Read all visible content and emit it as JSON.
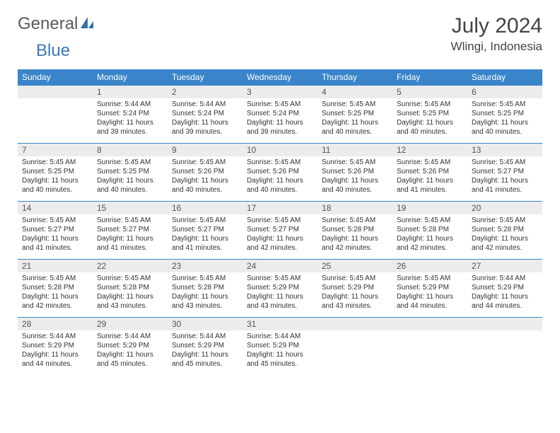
{
  "logo": {
    "part1": "General",
    "part2": "Blue"
  },
  "title": "July 2024",
  "location": "Wlingi, Indonesia",
  "weekdays": [
    "Sunday",
    "Monday",
    "Tuesday",
    "Wednesday",
    "Thursday",
    "Friday",
    "Saturday"
  ],
  "colors": {
    "header_bg": "#3a85c9",
    "header_fg": "#ffffff",
    "daynum_bg": "#ececec",
    "row_border": "#3a85c9",
    "logo_gray": "#5a5a5a",
    "logo_blue": "#3a7ab8"
  },
  "fonts": {
    "title_size": 30,
    "location_size": 17,
    "weekday_size": 12,
    "daynum_size": 12,
    "body_size": 10
  },
  "layout": {
    "first_day_column": 1,
    "n_days": 31,
    "rows": 5,
    "cols": 7
  },
  "days": [
    {
      "n": 1,
      "sunrise": "5:44 AM",
      "sunset": "5:24 PM",
      "daylight": "11 hours and 39 minutes."
    },
    {
      "n": 2,
      "sunrise": "5:44 AM",
      "sunset": "5:24 PM",
      "daylight": "11 hours and 39 minutes."
    },
    {
      "n": 3,
      "sunrise": "5:45 AM",
      "sunset": "5:24 PM",
      "daylight": "11 hours and 39 minutes."
    },
    {
      "n": 4,
      "sunrise": "5:45 AM",
      "sunset": "5:25 PM",
      "daylight": "11 hours and 40 minutes."
    },
    {
      "n": 5,
      "sunrise": "5:45 AM",
      "sunset": "5:25 PM",
      "daylight": "11 hours and 40 minutes."
    },
    {
      "n": 6,
      "sunrise": "5:45 AM",
      "sunset": "5:25 PM",
      "daylight": "11 hours and 40 minutes."
    },
    {
      "n": 7,
      "sunrise": "5:45 AM",
      "sunset": "5:25 PM",
      "daylight": "11 hours and 40 minutes."
    },
    {
      "n": 8,
      "sunrise": "5:45 AM",
      "sunset": "5:25 PM",
      "daylight": "11 hours and 40 minutes."
    },
    {
      "n": 9,
      "sunrise": "5:45 AM",
      "sunset": "5:26 PM",
      "daylight": "11 hours and 40 minutes."
    },
    {
      "n": 10,
      "sunrise": "5:45 AM",
      "sunset": "5:26 PM",
      "daylight": "11 hours and 40 minutes."
    },
    {
      "n": 11,
      "sunrise": "5:45 AM",
      "sunset": "5:26 PM",
      "daylight": "11 hours and 40 minutes."
    },
    {
      "n": 12,
      "sunrise": "5:45 AM",
      "sunset": "5:26 PM",
      "daylight": "11 hours and 41 minutes."
    },
    {
      "n": 13,
      "sunrise": "5:45 AM",
      "sunset": "5:27 PM",
      "daylight": "11 hours and 41 minutes."
    },
    {
      "n": 14,
      "sunrise": "5:45 AM",
      "sunset": "5:27 PM",
      "daylight": "11 hours and 41 minutes."
    },
    {
      "n": 15,
      "sunrise": "5:45 AM",
      "sunset": "5:27 PM",
      "daylight": "11 hours and 41 minutes."
    },
    {
      "n": 16,
      "sunrise": "5:45 AM",
      "sunset": "5:27 PM",
      "daylight": "11 hours and 41 minutes."
    },
    {
      "n": 17,
      "sunrise": "5:45 AM",
      "sunset": "5:27 PM",
      "daylight": "11 hours and 42 minutes."
    },
    {
      "n": 18,
      "sunrise": "5:45 AM",
      "sunset": "5:28 PM",
      "daylight": "11 hours and 42 minutes."
    },
    {
      "n": 19,
      "sunrise": "5:45 AM",
      "sunset": "5:28 PM",
      "daylight": "11 hours and 42 minutes."
    },
    {
      "n": 20,
      "sunrise": "5:45 AM",
      "sunset": "5:28 PM",
      "daylight": "11 hours and 42 minutes."
    },
    {
      "n": 21,
      "sunrise": "5:45 AM",
      "sunset": "5:28 PM",
      "daylight": "11 hours and 42 minutes."
    },
    {
      "n": 22,
      "sunrise": "5:45 AM",
      "sunset": "5:28 PM",
      "daylight": "11 hours and 43 minutes."
    },
    {
      "n": 23,
      "sunrise": "5:45 AM",
      "sunset": "5:28 PM",
      "daylight": "11 hours and 43 minutes."
    },
    {
      "n": 24,
      "sunrise": "5:45 AM",
      "sunset": "5:29 PM",
      "daylight": "11 hours and 43 minutes."
    },
    {
      "n": 25,
      "sunrise": "5:45 AM",
      "sunset": "5:29 PM",
      "daylight": "11 hours and 43 minutes."
    },
    {
      "n": 26,
      "sunrise": "5:45 AM",
      "sunset": "5:29 PM",
      "daylight": "11 hours and 44 minutes."
    },
    {
      "n": 27,
      "sunrise": "5:44 AM",
      "sunset": "5:29 PM",
      "daylight": "11 hours and 44 minutes."
    },
    {
      "n": 28,
      "sunrise": "5:44 AM",
      "sunset": "5:29 PM",
      "daylight": "11 hours and 44 minutes."
    },
    {
      "n": 29,
      "sunrise": "5:44 AM",
      "sunset": "5:29 PM",
      "daylight": "11 hours and 45 minutes."
    },
    {
      "n": 30,
      "sunrise": "5:44 AM",
      "sunset": "5:29 PM",
      "daylight": "11 hours and 45 minutes."
    },
    {
      "n": 31,
      "sunrise": "5:44 AM",
      "sunset": "5:29 PM",
      "daylight": "11 hours and 45 minutes."
    }
  ],
  "labels": {
    "sunrise": "Sunrise:",
    "sunset": "Sunset:",
    "daylight": "Daylight:"
  }
}
